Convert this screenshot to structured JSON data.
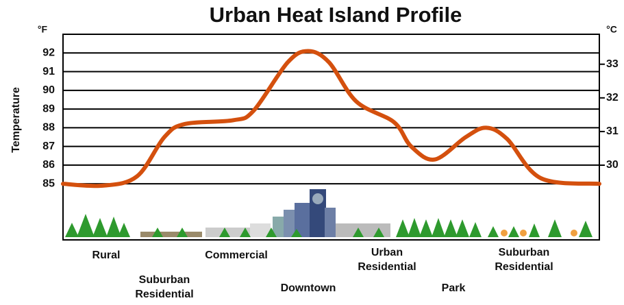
{
  "chart_data": {
    "type": "line",
    "title": "Urban Heat Island Profile",
    "y_label": "Temperature",
    "y_unit": "°F",
    "y2_unit": "°C",
    "x": [
      0,
      7.4,
      13.8,
      18.9,
      22.7,
      31.7,
      35.5,
      41.9,
      45.7,
      49.6,
      54.7,
      61.7,
      64.9,
      69.3,
      75.1,
      78.9,
      82.8,
      89.1,
      100
    ],
    "series": [
      {
        "name": "Temperature",
        "color": "#d4500e",
        "values": [
          85.0,
          84.9,
          85.4,
          87.5,
          88.2,
          88.4,
          88.9,
          91.5,
          92.1,
          91.5,
          89.4,
          88.3,
          87.0,
          86.3,
          87.5,
          88.0,
          87.4,
          85.3,
          85.0
        ]
      }
    ],
    "xlim": [
      0,
      100
    ],
    "ylim": [
      82,
      93
    ],
    "yticks": [
      85,
      86,
      87,
      88,
      89,
      90,
      91,
      92
    ],
    "y2lim": [
      27.78,
      33.89
    ],
    "y2ticks": [
      30,
      31,
      32,
      33
    ],
    "grid": true,
    "zones": [
      "Rural",
      "Suburban Residential",
      "Commercial",
      "Downtown",
      "Urban Residential",
      "Park",
      "Suburban Residential"
    ]
  }
}
